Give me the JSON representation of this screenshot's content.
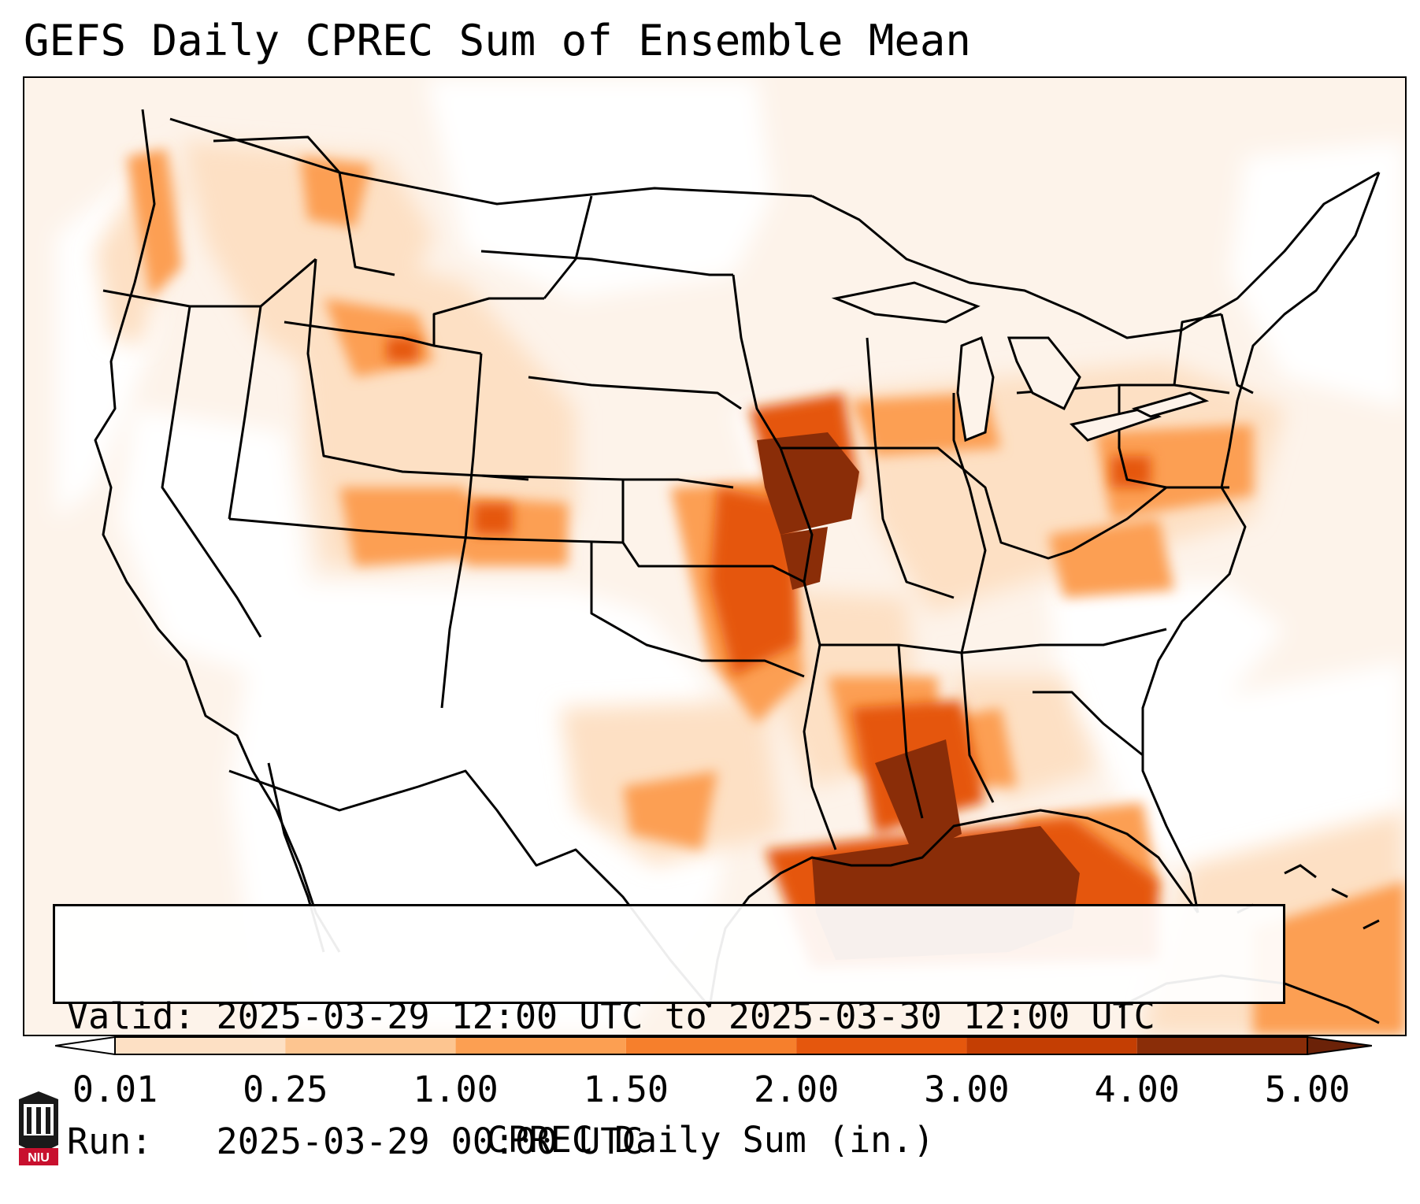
{
  "title": "GEFS Daily CPREC Sum of Ensemble Mean",
  "info": {
    "valid": "Valid: 2025-03-29 12:00 UTC to 2025-03-30 12:00 UTC",
    "run": "Run:   2025-03-29 00:00 UTC"
  },
  "colorbar": {
    "label": "CPREC Daily Sum (in.)",
    "ticks": [
      "0.01",
      "0.25",
      "1.00",
      "1.50",
      "2.00",
      "3.00",
      "4.00",
      "5.00"
    ],
    "colors": [
      "#fef2e6",
      "#fde0c4",
      "#fdc590",
      "#fc9f52",
      "#f67f2c",
      "#e5570d",
      "#c43e03",
      "#8a2d08"
    ]
  },
  "logo": {
    "text": "NIU",
    "colors": {
      "shield": "#1a1a1a",
      "banner": "#c8102e"
    }
  },
  "map": {
    "region": "Contiguous United States",
    "borders": "state-outline",
    "heaviest_areas": [
      "Gulf of Mexico",
      "Mississippi",
      "Iowa",
      "Kansas",
      "Missouri"
    ]
  }
}
